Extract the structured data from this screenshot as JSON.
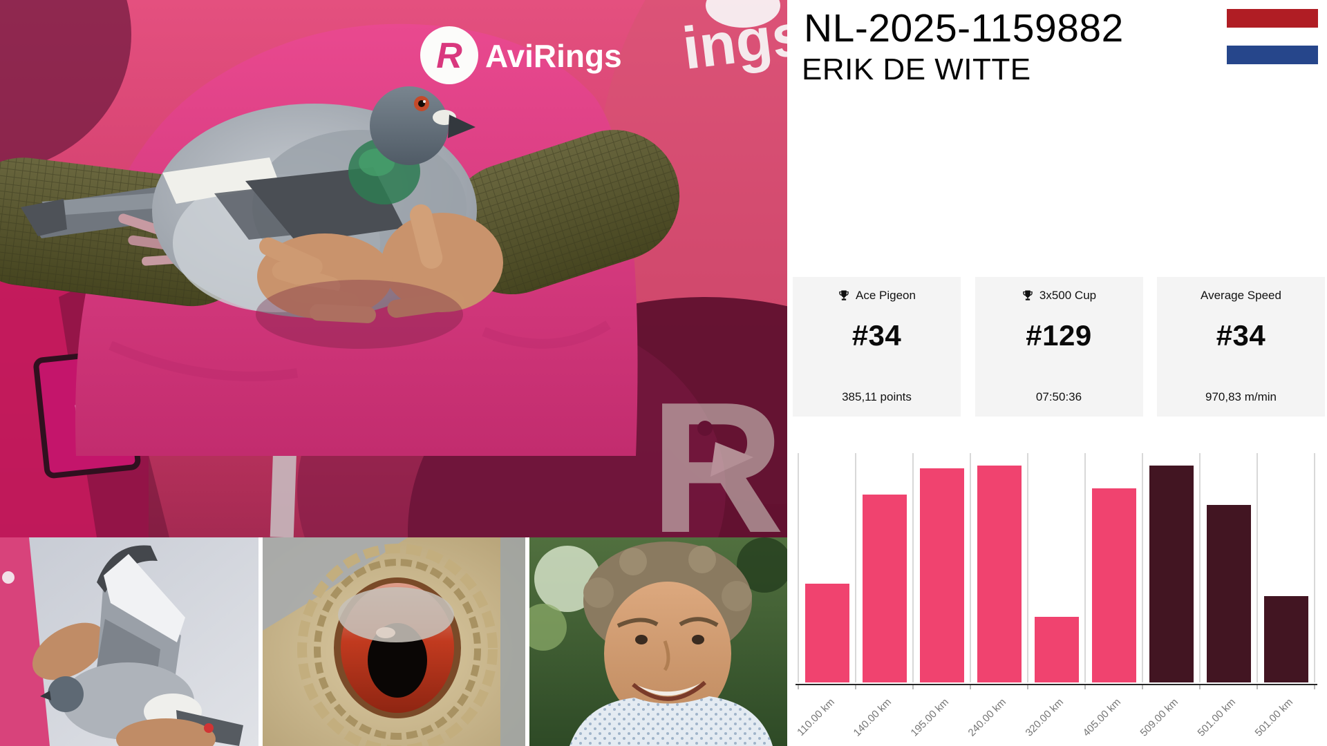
{
  "header": {
    "ring_id": "NL-2025-1159882",
    "owner_name": "ERIK DE WITTE",
    "flag": {
      "country_colors": [
        "#B01D24",
        "#FFFFFF",
        "#26468B"
      ]
    }
  },
  "photos": {
    "main": {
      "brand_circle_letter": "R",
      "brand_text": "AviRings",
      "backdrop_partial_text": "ings",
      "wall_card_letter": "R",
      "backdrop_logo_letter": "R"
    }
  },
  "stats": [
    {
      "icon": "trophy-icon",
      "label": "Ace Pigeon",
      "rank": "#34",
      "detail": "385,11 points"
    },
    {
      "icon": "trophy-icon",
      "label": "3x500 Cup",
      "rank": "#129",
      "detail": "07:50:36"
    },
    {
      "icon": null,
      "label": "Average Speed",
      "rank": "#34",
      "detail": "970,83 m/min"
    }
  ],
  "chart_data": {
    "type": "bar",
    "categories": [
      "110.00 km",
      "140.00 km",
      "195.00 km",
      "240.00 km",
      "320.00 km",
      "405.00 km",
      "509.00 km",
      "501.00 km",
      "501.00 km"
    ],
    "values": [
      43,
      82,
      93.5,
      94.5,
      28.5,
      84.5,
      94.5,
      77.5,
      37.5
    ],
    "value_unit": "relative-bar-height-percent (no y-axis labels shown)",
    "colors": [
      "#F0436F",
      "#F0436F",
      "#F0436F",
      "#F0436F",
      "#F0436F",
      "#F0436F",
      "#421522",
      "#421522",
      "#421522"
    ],
    "title": "",
    "xlabel": "",
    "ylabel": "",
    "ylim": [
      0,
      100
    ],
    "y_axis_visible": false,
    "grid": "vertical-only",
    "gridline_color": "#D8D8D8",
    "axis_line_color": "#262626",
    "tick_label_color": "#757575",
    "tick_label_rotation_deg": -45
  }
}
